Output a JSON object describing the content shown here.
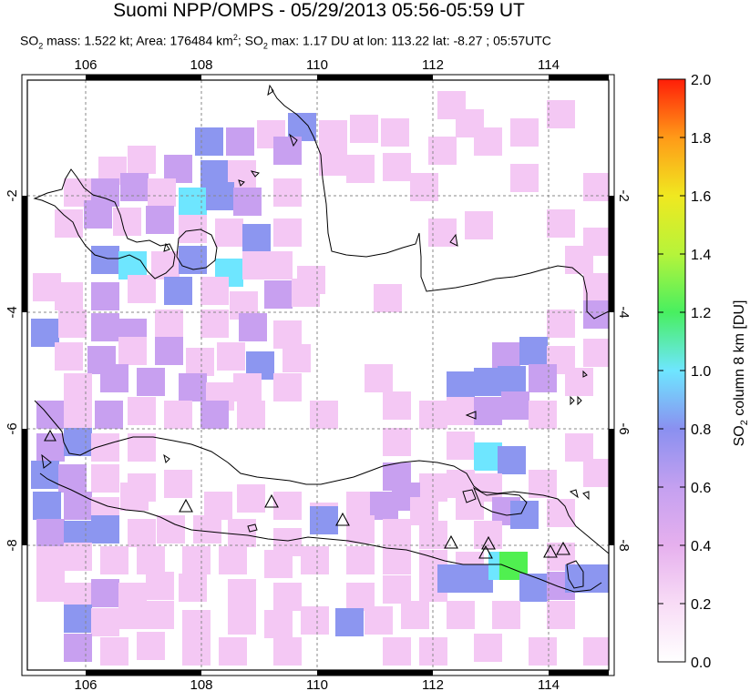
{
  "header": {
    "title": "Suomi NPP/OMPS - 05/29/2013 05:56-05:59 UT",
    "so2_prefix": "SO",
    "so2_sub": "2",
    "mass_text": " mass: 1.522 kt; Area: 176484 km",
    "area_sup": "2",
    "max_prefix": "; SO",
    "max_sub": "2",
    "max_text": " max: 1.17 DU at lon: 113.22 lat: -8.27 ; 05:57UTC"
  },
  "map": {
    "lon_ticks": [
      "106",
      "108",
      "110",
      "112",
      "114"
    ],
    "lat_ticks": [
      "-2",
      "-4",
      "-6",
      "-8"
    ],
    "volcanoes": [
      "volcano",
      "volcano",
      "volcano",
      "volcano",
      "volcano",
      "volcano",
      "volcano",
      "volcano",
      "volcano"
    ]
  },
  "colorbar": {
    "ticks": [
      "2.0",
      "1.8",
      "1.6",
      "1.4",
      "1.2",
      "1.0",
      "0.8",
      "0.6",
      "0.4",
      "0.2",
      "0.0"
    ],
    "label_main": "SO",
    "label_sub": "2",
    "label_rest": " column 8 km [DU]",
    "colors": [
      "#ffffff",
      "#f4c8f4",
      "#c8a0f0",
      "#8c96f0",
      "#6ee6ff",
      "#50f050",
      "#e0ff40",
      "#ffa020",
      "#ff2010"
    ]
  }
}
